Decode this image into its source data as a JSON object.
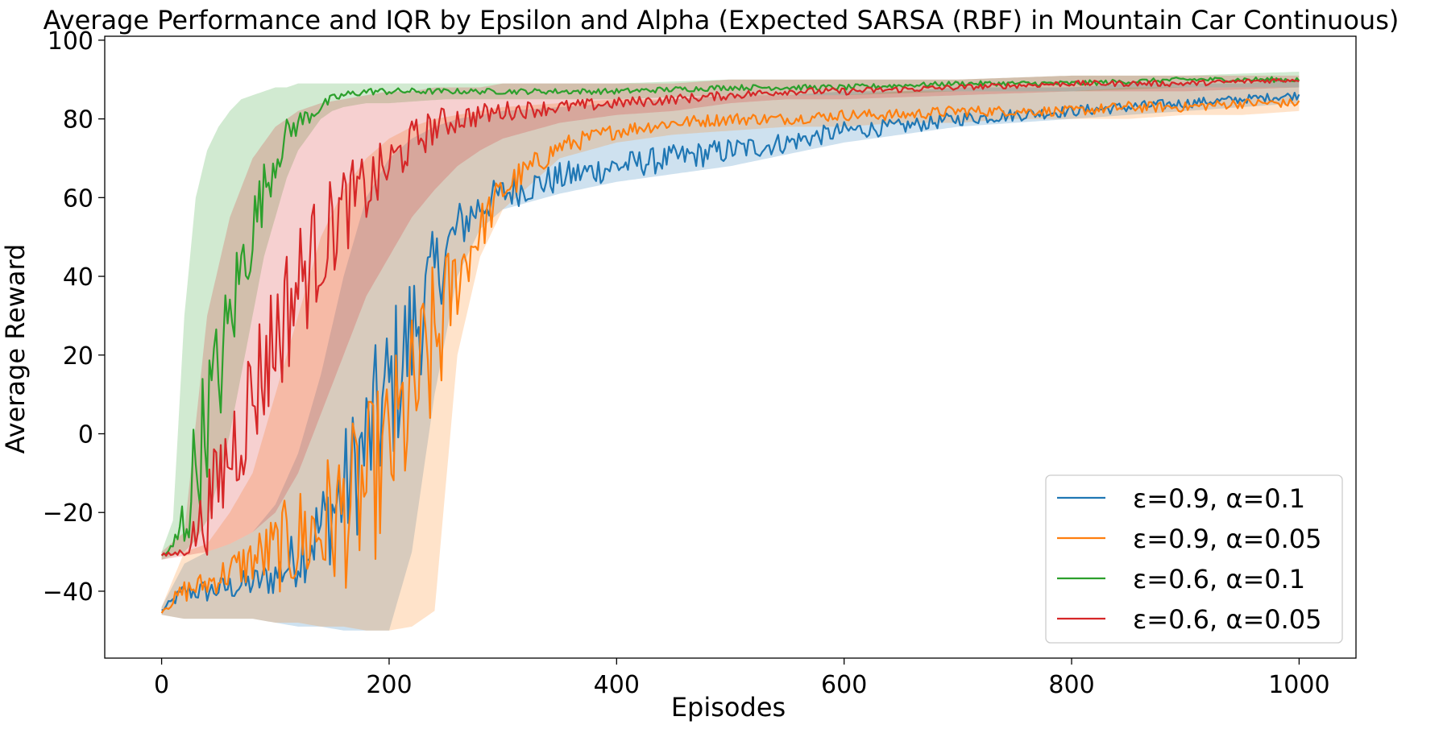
{
  "chart_data": {
    "type": "line",
    "title": "Average Performance and IQR by Epsilon and Alpha (Expected SARSA (RBF) in Mountain Car Continuous)",
    "xlabel": "Episodes",
    "ylabel": "Average Reward",
    "xlim": [
      -50,
      1050
    ],
    "ylim": [
      -57,
      101
    ],
    "xticks": [
      0,
      200,
      400,
      600,
      800,
      1000
    ],
    "xtick_labels": [
      "0",
      "200",
      "400",
      "600",
      "800",
      "1000"
    ],
    "yticks": [
      -40,
      -20,
      0,
      20,
      40,
      60,
      80,
      100
    ],
    "ytick_labels": [
      "−40",
      "−20",
      "0",
      "20",
      "40",
      "60",
      "80",
      "100"
    ],
    "grid": false,
    "legend_position": "lower-right",
    "series": [
      {
        "name": "ε=0.9, α=0.1",
        "color": "#1f77b4",
        "x": [
          0,
          20,
          40,
          60,
          80,
          100,
          120,
          140,
          160,
          180,
          200,
          220,
          240,
          260,
          280,
          300,
          350,
          400,
          450,
          500,
          550,
          600,
          650,
          700,
          750,
          800,
          850,
          900,
          950,
          1000
        ],
        "y": [
          -45,
          -40,
          -40,
          -39,
          -38,
          -36,
          -31,
          -24,
          -15,
          -3,
          10,
          25,
          40,
          52,
          58,
          61,
          65,
          68,
          70,
          72,
          74,
          77,
          78,
          80,
          81,
          82,
          83,
          84,
          85,
          86
        ],
        "iqr_low": [
          -46,
          -47,
          -47,
          -47,
          -47,
          -48,
          -49,
          -49,
          -50,
          -50,
          -50,
          -30,
          10,
          40,
          52,
          57,
          61,
          64,
          66,
          68,
          71,
          74,
          76,
          78,
          79,
          80,
          81,
          82,
          83,
          84
        ],
        "iqr_high": [
          -44,
          -33,
          -30,
          -28,
          -25,
          -18,
          -5,
          15,
          40,
          60,
          70,
          75,
          78,
          80,
          81,
          82,
          83,
          84,
          85,
          86,
          86,
          87,
          87,
          88,
          88,
          88,
          89,
          89,
          89,
          90
        ]
      },
      {
        "name": "ε=0.9, α=0.05",
        "color": "#ff7f0e",
        "x": [
          0,
          20,
          40,
          60,
          80,
          100,
          120,
          140,
          160,
          180,
          200,
          220,
          240,
          260,
          280,
          300,
          350,
          400,
          450,
          500,
          550,
          600,
          650,
          700,
          750,
          800,
          850,
          900,
          950,
          1000
        ],
        "y": [
          -45,
          -40,
          -38,
          -35,
          -32,
          -30,
          -27,
          -24,
          -20,
          -14,
          -5,
          8,
          22,
          40,
          52,
          62,
          73,
          77,
          79,
          80,
          80,
          81,
          81,
          82,
          82,
          82,
          83,
          83,
          84,
          84
        ],
        "iqr_low": [
          -46,
          -47,
          -47,
          -47,
          -47,
          -48,
          -48,
          -49,
          -49,
          -50,
          -50,
          -49,
          -45,
          20,
          45,
          57,
          70,
          74,
          76,
          77,
          78,
          78,
          79,
          79,
          80,
          80,
          80,
          81,
          81,
          82
        ],
        "iqr_high": [
          -44,
          -30,
          -28,
          -20,
          -10,
          10,
          30,
          50,
          62,
          70,
          75,
          78,
          80,
          81,
          82,
          83,
          84,
          85,
          85,
          86,
          86,
          86,
          87,
          87,
          87,
          87,
          88,
          88,
          88,
          88
        ]
      },
      {
        "name": "ε=0.6, α=0.1",
        "color": "#2ca02c",
        "x": [
          0,
          10,
          20,
          30,
          40,
          50,
          60,
          70,
          80,
          90,
          100,
          110,
          120,
          130,
          140,
          150,
          160,
          180,
          200,
          250,
          300,
          400,
          500,
          600,
          700,
          800,
          900,
          1000
        ],
        "y": [
          -31,
          -29,
          -22,
          -8,
          5,
          15,
          28,
          42,
          52,
          62,
          70,
          76,
          79,
          81,
          83,
          85,
          86,
          87,
          87,
          87,
          87,
          87,
          88,
          88,
          89,
          89,
          90,
          90
        ],
        "iqr_low": [
          -32,
          -31,
          -30,
          -27,
          -22,
          -12,
          0,
          15,
          30,
          45,
          55,
          65,
          72,
          76,
          80,
          82,
          83,
          84,
          84,
          85,
          85,
          85,
          86,
          86,
          87,
          87,
          88,
          88
        ],
        "iqr_high": [
          -30,
          -22,
          30,
          60,
          72,
          78,
          82,
          85,
          86,
          87,
          88,
          88,
          89,
          89,
          89,
          89,
          89,
          89,
          89,
          89,
          89,
          89,
          90,
          90,
          90,
          91,
          91,
          92
        ]
      },
      {
        "name": "ε=0.6, α=0.05",
        "color": "#d62728",
        "x": [
          0,
          20,
          40,
          60,
          80,
          100,
          120,
          140,
          160,
          180,
          200,
          220,
          240,
          260,
          280,
          300,
          350,
          400,
          450,
          500,
          550,
          600,
          700,
          800,
          900,
          1000
        ],
        "y": [
          -31,
          -30,
          -20,
          -5,
          10,
          25,
          38,
          48,
          57,
          62,
          68,
          74,
          78,
          80,
          81,
          82,
          83,
          84,
          85,
          86,
          87,
          87,
          88,
          89,
          89,
          90
        ],
        "iqr_low": [
          -32,
          -31,
          -30,
          -28,
          -25,
          -20,
          -10,
          5,
          20,
          35,
          45,
          55,
          62,
          68,
          72,
          75,
          79,
          81,
          82,
          84,
          85,
          85,
          86,
          87,
          87,
          88
        ],
        "iqr_high": [
          -30,
          -25,
          30,
          55,
          70,
          78,
          82,
          84,
          85,
          86,
          87,
          87,
          88,
          88,
          88,
          89,
          89,
          89,
          89,
          90,
          90,
          90,
          90,
          91,
          91,
          91
        ]
      }
    ]
  }
}
